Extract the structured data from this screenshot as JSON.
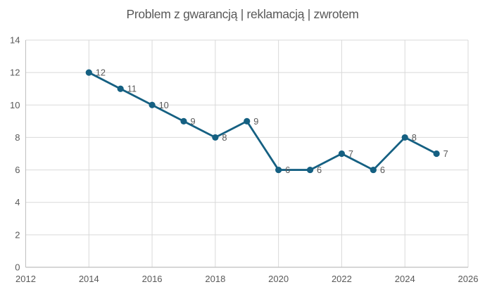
{
  "chart_data": {
    "type": "line",
    "title": "Problem z gwarancją | reklamacją | zwrotem",
    "x": [
      2014,
      2015,
      2016,
      2017,
      2018,
      2019,
      2020,
      2021,
      2022,
      2023,
      2024,
      2025
    ],
    "values": [
      12,
      11,
      10,
      9,
      8,
      9,
      6,
      6,
      7,
      6,
      8,
      7
    ],
    "data_labels": [
      12,
      11,
      10,
      9,
      8,
      9,
      6,
      6,
      7,
      6,
      8,
      7
    ],
    "xlabel": "",
    "ylabel": "",
    "xlim": [
      2012,
      2026
    ],
    "ylim": [
      0,
      14
    ],
    "x_ticks": [
      2012,
      2014,
      2016,
      2018,
      2020,
      2022,
      2024,
      2026
    ],
    "y_ticks": [
      0,
      2,
      4,
      6,
      8,
      10,
      12,
      14
    ],
    "grid": "both",
    "legend": "none",
    "colors": {
      "series": "#156082",
      "marker": "#156082",
      "title_text": "#595959",
      "tick_text": "#595959",
      "data_label_text": "#595959",
      "gridline": "#d9d9d9",
      "axis_line": "#bfbfbf",
      "background": "#ffffff"
    }
  }
}
